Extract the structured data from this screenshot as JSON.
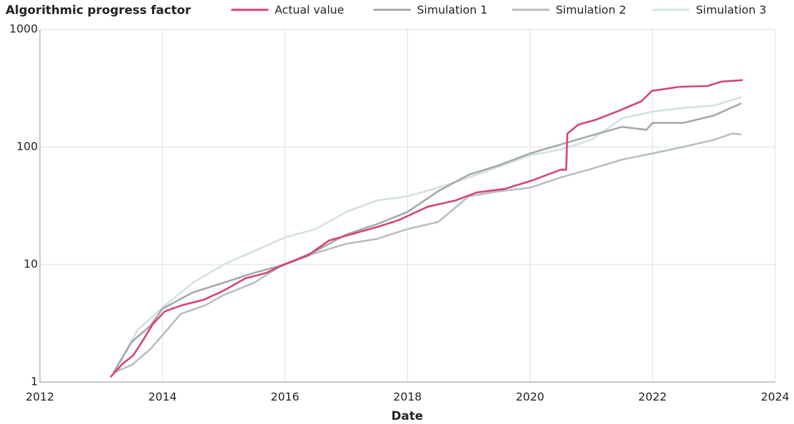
{
  "chart_data": {
    "type": "line",
    "title": "Algorithmic progress factor",
    "x_label": "Date",
    "xlim": [
      2012,
      2024
    ],
    "xticks": [
      2012,
      2014,
      2016,
      2018,
      2020,
      2022,
      2024
    ],
    "ylim": [
      1,
      1000
    ],
    "yticks": [
      1,
      10,
      100,
      1000
    ],
    "log_y": true,
    "grid": true,
    "legend": "top",
    "series": [
      {
        "name": "Actual value",
        "color": "#d6407a",
        "x": [
          2013.15,
          2013.35,
          2013.52,
          2013.69,
          2013.84,
          2014.04,
          2014.32,
          2014.67,
          2015.0,
          2015.35,
          2015.7,
          2015.98,
          2016.38,
          2016.72,
          2017.07,
          2017.53,
          2017.87,
          2018.33,
          2018.78,
          2019.13,
          2019.59,
          2020.04,
          2020.5,
          2020.59,
          2020.61,
          2020.79,
          2021.07,
          2021.42,
          2021.82,
          2021.99,
          2022.45,
          2022.9,
          2023.13,
          2023.47
        ],
        "values": [
          1.1,
          1.43,
          1.68,
          2.3,
          3.1,
          4.0,
          4.5,
          5.0,
          6.0,
          7.6,
          8.5,
          10,
          12,
          16,
          18,
          21,
          24,
          31,
          35,
          41,
          44,
          52,
          64,
          64,
          130,
          155,
          170,
          200,
          245,
          300,
          325,
          330,
          360,
          370
        ]
      },
      {
        "name": "Simulation 1",
        "color": "#a3a8a8",
        "x": [
          2013.2,
          2013.5,
          2013.8,
          2014.0,
          2014.5,
          2015.0,
          2015.5,
          2016.0,
          2016.5,
          2017.0,
          2017.5,
          2018.0,
          2018.5,
          2019.0,
          2019.5,
          2020.0,
          2020.5,
          2021.0,
          2021.5,
          2021.9,
          2022.0,
          2022.5,
          2023.0,
          2023.45
        ],
        "values": [
          1.2,
          2.2,
          3.0,
          4.2,
          5.8,
          7.0,
          8.5,
          10,
          13,
          18,
          22,
          28,
          42,
          58,
          70,
          88,
          105,
          125,
          148,
          140,
          160,
          160,
          185,
          235
        ]
      },
      {
        "name": "Simulation 2",
        "color": "#b5bec0",
        "x": [
          2013.2,
          2013.5,
          2013.8,
          2014.0,
          2014.3,
          2014.7,
          2015.0,
          2015.5,
          2015.9,
          2016.5,
          2017.0,
          2017.5,
          2018.0,
          2018.5,
          2019.0,
          2019.5,
          2020.0,
          2020.5,
          2021.0,
          2021.5,
          2022.0,
          2022.5,
          2023.0,
          2023.3,
          2023.45
        ],
        "values": [
          1.2,
          1.4,
          1.9,
          2.5,
          3.8,
          4.5,
          5.5,
          7,
          9.5,
          12.5,
          15,
          16.5,
          20,
          23,
          38,
          42,
          45,
          55,
          65,
          78,
          88,
          100,
          115,
          130,
          128
        ]
      },
      {
        "name": "Simulation 3",
        "color": "#d3e0e3",
        "x": [
          2013.2,
          2013.6,
          2014.0,
          2014.5,
          2015.0,
          2015.5,
          2016.0,
          2016.5,
          2017.0,
          2017.5,
          2018.0,
          2018.5,
          2019.0,
          2019.5,
          2020.0,
          2020.5,
          2021.0,
          2021.5,
          2022.0,
          2022.5,
          2023.0,
          2023.45
        ],
        "values": [
          1.2,
          2.8,
          4.3,
          7,
          10,
          13,
          17,
          20,
          28,
          35,
          38,
          45,
          55,
          68,
          85,
          95,
          115,
          175,
          200,
          215,
          225,
          265
        ]
      }
    ]
  }
}
